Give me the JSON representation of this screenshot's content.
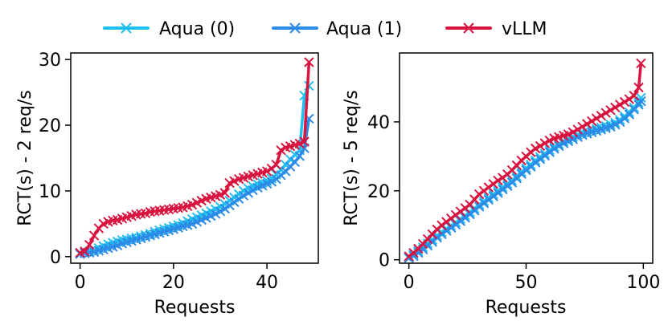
{
  "legend": {
    "placement": "top-center",
    "entries": [
      {
        "label": "Aqua (0)",
        "color": "#1fbfef",
        "marker": "x"
      },
      {
        "label": "Aqua (1)",
        "color": "#2b8be6",
        "marker": "x"
      },
      {
        "label": "vLLM",
        "color": "#d9143f",
        "marker": "x"
      }
    ]
  },
  "chart_data": [
    {
      "type": "line",
      "title": "",
      "xlabel": "Requests",
      "ylabel": "RCT(s) - 2 req/s",
      "xlim": [
        -2,
        51
      ],
      "ylim": [
        -1,
        31
      ],
      "xticks": [
        0,
        20,
        40
      ],
      "yticks": [
        0,
        10,
        20,
        30
      ],
      "grid": false,
      "series": [
        {
          "name": "Aqua (0)",
          "color": "#1fbfef",
          "x": [
            0,
            1,
            2,
            3,
            4,
            5,
            6,
            7,
            8,
            9,
            10,
            11,
            12,
            13,
            14,
            15,
            16,
            17,
            18,
            19,
            20,
            21,
            22,
            23,
            24,
            25,
            26,
            27,
            28,
            29,
            30,
            31,
            32,
            33,
            34,
            35,
            36,
            37,
            38,
            39,
            40,
            41,
            42,
            43,
            44,
            45,
            46,
            47,
            48,
            49
          ],
          "values": [
            0.5,
            0.6,
            0.8,
            1.0,
            1.3,
            1.6,
            1.9,
            2.1,
            2.3,
            2.5,
            2.6,
            2.8,
            2.9,
            3.1,
            3.3,
            3.5,
            3.8,
            4.0,
            4.2,
            4.4,
            4.6,
            4.8,
            5.1,
            5.4,
            5.7,
            6.0,
            6.3,
            6.6,
            6.9,
            7.2,
            7.6,
            8.0,
            8.5,
            9.0,
            9.5,
            10.0,
            10.4,
            10.7,
            11.0,
            11.2,
            11.5,
            11.9,
            12.5,
            13.2,
            14.0,
            14.8,
            15.5,
            16.2,
            24.5,
            26.0
          ]
        },
        {
          "name": "Aqua (1)",
          "color": "#2b8be6",
          "x": [
            0,
            1,
            2,
            3,
            4,
            5,
            6,
            7,
            8,
            9,
            10,
            11,
            12,
            13,
            14,
            15,
            16,
            17,
            18,
            19,
            20,
            21,
            22,
            23,
            24,
            25,
            26,
            27,
            28,
            29,
            30,
            31,
            32,
            33,
            34,
            35,
            36,
            37,
            38,
            39,
            40,
            41,
            42,
            43,
            44,
            45,
            46,
            47,
            48,
            49
          ],
          "values": [
            0.4,
            0.5,
            0.6,
            0.7,
            0.9,
            1.1,
            1.3,
            1.5,
            1.7,
            2.0,
            2.2,
            2.4,
            2.6,
            2.8,
            3.0,
            3.2,
            3.4,
            3.6,
            3.8,
            4.0,
            4.2,
            4.4,
            4.6,
            4.8,
            5.0,
            5.3,
            5.6,
            5.9,
            6.2,
            6.5,
            6.9,
            7.3,
            7.8,
            8.3,
            8.8,
            9.3,
            9.7,
            10.1,
            10.5,
            10.8,
            11.1,
            11.4,
            11.8,
            12.4,
            13.0,
            13.7,
            14.4,
            15.3,
            16.5,
            21.0
          ]
        },
        {
          "name": "vLLM",
          "color": "#d9143f",
          "x": [
            0,
            1,
            2,
            3,
            4,
            5,
            6,
            7,
            8,
            9,
            10,
            11,
            12,
            13,
            14,
            15,
            16,
            17,
            18,
            19,
            20,
            21,
            22,
            23,
            24,
            25,
            26,
            27,
            28,
            29,
            30,
            31,
            32,
            33,
            34,
            35,
            36,
            37,
            38,
            39,
            40,
            41,
            42,
            43,
            44,
            45,
            46,
            47,
            48,
            49
          ],
          "values": [
            0.6,
            0.8,
            1.8,
            3.2,
            4.3,
            5.0,
            5.3,
            5.5,
            5.6,
            5.8,
            6.0,
            6.2,
            6.4,
            6.5,
            6.6,
            6.8,
            6.9,
            7.0,
            7.1,
            7.2,
            7.3,
            7.4,
            7.5,
            7.7,
            7.9,
            8.2,
            8.5,
            8.8,
            9.0,
            9.2,
            9.4,
            9.7,
            11.2,
            11.5,
            11.8,
            12.0,
            12.2,
            12.4,
            12.6,
            12.8,
            13.0,
            13.4,
            14.0,
            16.2,
            16.6,
            16.8,
            17.0,
            17.2,
            17.5,
            29.6
          ]
        }
      ]
    },
    {
      "type": "line",
      "title": "",
      "xlabel": "Requests",
      "ylabel": "RCT(s) - 5 req/s",
      "xlim": [
        -4,
        104
      ],
      "ylim": [
        -1,
        60
      ],
      "xticks": [
        0,
        50,
        100
      ],
      "yticks": [
        0,
        20,
        40
      ],
      "grid": false,
      "series": [
        {
          "name": "Aqua (0)",
          "color": "#1fbfef",
          "x": [
            0,
            2,
            4,
            6,
            8,
            10,
            12,
            14,
            16,
            18,
            20,
            22,
            24,
            26,
            28,
            30,
            32,
            34,
            36,
            38,
            40,
            42,
            44,
            46,
            48,
            50,
            52,
            54,
            56,
            58,
            60,
            62,
            64,
            66,
            68,
            70,
            72,
            74,
            76,
            78,
            80,
            82,
            84,
            86,
            88,
            90,
            92,
            94,
            96,
            98,
            99
          ],
          "values": [
            0.8,
            1.5,
            2.5,
            3.6,
            4.7,
            5.8,
            7.0,
            8.0,
            9.0,
            9.9,
            10.8,
            11.8,
            12.8,
            13.8,
            14.9,
            16.0,
            17.0,
            18.0,
            19.0,
            20.0,
            21.0,
            22.0,
            23.0,
            24.2,
            25.5,
            26.6,
            27.6,
            28.8,
            29.8,
            30.8,
            31.8,
            32.8,
            33.6,
            34.4,
            35.0,
            35.6,
            36.2,
            36.8,
            37.2,
            37.6,
            38.0,
            38.4,
            38.8,
            39.2,
            39.8,
            40.6,
            41.6,
            42.8,
            44.2,
            45.6,
            47.0
          ]
        },
        {
          "name": "Aqua (1)",
          "color": "#2b8be6",
          "x": [
            0,
            2,
            4,
            6,
            8,
            10,
            12,
            14,
            16,
            18,
            20,
            22,
            24,
            26,
            28,
            30,
            32,
            34,
            36,
            38,
            40,
            42,
            44,
            46,
            48,
            50,
            52,
            54,
            56,
            58,
            60,
            62,
            64,
            66,
            68,
            70,
            72,
            74,
            76,
            78,
            80,
            82,
            84,
            86,
            88,
            90,
            92,
            94,
            96,
            98,
            99
          ],
          "values": [
            0.5,
            1.1,
            2.0,
            3.0,
            4.1,
            5.2,
            6.4,
            7.4,
            8.4,
            9.3,
            10.2,
            11.2,
            12.2,
            13.2,
            14.3,
            15.4,
            16.4,
            17.4,
            18.4,
            19.4,
            20.4,
            21.4,
            22.4,
            23.6,
            24.9,
            26.0,
            27.0,
            28.2,
            29.2,
            30.2,
            31.2,
            32.2,
            33.0,
            33.8,
            34.4,
            35.0,
            35.6,
            36.2,
            36.6,
            37.0,
            37.4,
            37.8,
            38.2,
            38.6,
            39.2,
            40.0,
            41.0,
            42.2,
            43.6,
            45.0,
            46.0
          ]
        },
        {
          "name": "vLLM",
          "color": "#d9143f",
          "x": [
            0,
            2,
            4,
            6,
            8,
            10,
            12,
            14,
            16,
            18,
            20,
            22,
            24,
            26,
            28,
            30,
            32,
            34,
            36,
            38,
            40,
            42,
            44,
            46,
            48,
            50,
            52,
            54,
            56,
            58,
            60,
            62,
            64,
            66,
            68,
            70,
            72,
            74,
            76,
            78,
            80,
            82,
            84,
            86,
            88,
            90,
            92,
            94,
            96,
            98,
            99
          ],
          "values": [
            1.0,
            2.0,
            3.2,
            4.6,
            6.0,
            7.4,
            8.8,
            10.0,
            11.0,
            12.0,
            13.0,
            14.0,
            15.0,
            16.0,
            17.5,
            19.0,
            20.0,
            21.0,
            22.0,
            23.0,
            23.8,
            24.8,
            26.0,
            27.4,
            28.8,
            30.0,
            31.2,
            32.3,
            33.0,
            33.8,
            34.6,
            35.2,
            35.6,
            36.0,
            36.4,
            37.0,
            37.8,
            38.6,
            39.4,
            40.2,
            41.0,
            41.8,
            42.6,
            43.4,
            44.2,
            45.0,
            45.8,
            46.6,
            47.6,
            50.0,
            57.0
          ]
        }
      ]
    }
  ]
}
